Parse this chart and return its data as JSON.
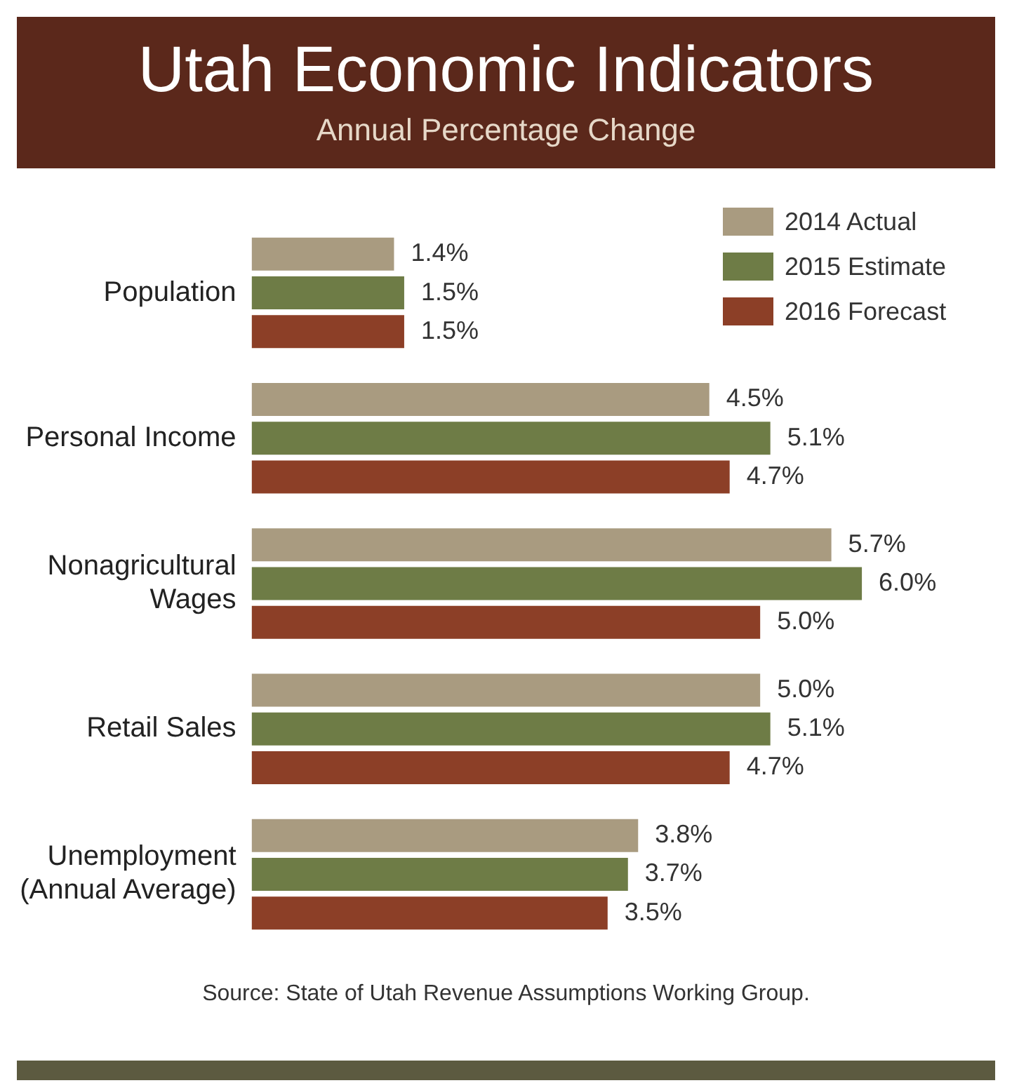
{
  "chart_data": {
    "type": "bar",
    "orientation": "horizontal",
    "title": "Utah Economic Indicators",
    "subtitle": "Annual Percentage Change",
    "categories": [
      "Population",
      "Personal Income",
      "Nonagricultural Wages",
      "Retail Sales",
      "Unemployment (Annual Average)"
    ],
    "series": [
      {
        "name": "2014 Actual",
        "color": "#a99b80",
        "values": [
          1.4,
          4.5,
          5.7,
          5.0,
          3.8
        ],
        "value_labels": [
          "1.4%",
          "4.5%",
          "5.7%",
          "5.0%",
          "3.8%"
        ]
      },
      {
        "name": "2015 Estimate",
        "color": "#6e7c46",
        "values": [
          1.5,
          5.1,
          6.0,
          5.1,
          3.7
        ],
        "value_labels": [
          "1.5%",
          "5.1%",
          "6.0%",
          "5.1%",
          "3.7%"
        ]
      },
      {
        "name": "2016 Forecast",
        "color": "#8c3f27",
        "values": [
          1.5,
          4.7,
          5.0,
          4.7,
          3.5
        ],
        "value_labels": [
          "1.5%",
          "4.7%",
          "5.0%",
          "4.7%",
          "3.5%"
        ]
      }
    ],
    "legend": "top right",
    "annotations": [
      "Source: State of Utah Revenue Assumptions Working Group."
    ]
  }
}
